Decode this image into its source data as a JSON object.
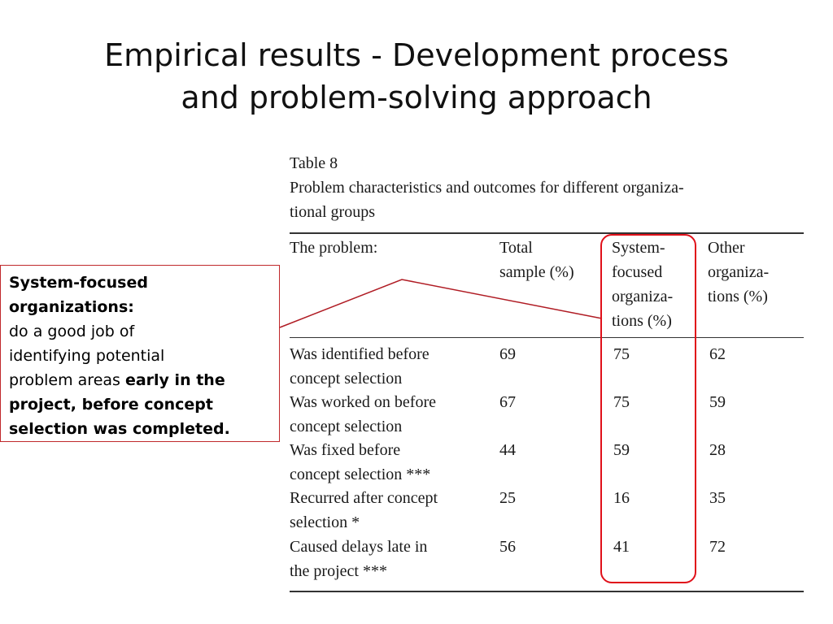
{
  "title": {
    "line1": "Empirical results - Development process",
    "line2": "and problem-solving approach"
  },
  "table": {
    "label": "Table 8",
    "caption_line1": "Problem characteristics and outcomes for different organiza-",
    "caption_line2": "tional groups",
    "columns": {
      "problem": "The problem:",
      "total": "Total sample (%)",
      "system": "System-focused organiza-tions (%)",
      "system_lines": [
        "System-",
        "focused",
        "organiza-",
        "tions (%)"
      ],
      "total_lines": [
        "Total",
        "sample (%)"
      ],
      "other_lines": [
        "Other",
        "organiza-",
        "tions (%)"
      ]
    },
    "rows": [
      {
        "lines": [
          "Was identified before",
          "concept selection"
        ],
        "total": "69",
        "system": "75",
        "other": "62"
      },
      {
        "lines": [
          "Was worked on before",
          "concept selection"
        ],
        "total": "67",
        "system": "75",
        "other": "59"
      },
      {
        "lines": [
          "Was fixed before",
          "concept selection ***"
        ],
        "total": "44",
        "system": "59",
        "other": "28"
      },
      {
        "lines": [
          "Recurred after concept",
          "selection *"
        ],
        "total": "25",
        "system": "16",
        "other": "35"
      },
      {
        "lines": [
          "Caused delays late in",
          "the project ***"
        ],
        "total": "56",
        "system": "41",
        "other": "72"
      }
    ]
  },
  "callout": {
    "heading_line1": "System-focused",
    "heading_line2": "organizations:",
    "body_line1": "do a good job of",
    "body_line2": "identifying potential",
    "body_line3_plain": "problem areas ",
    "body_line3_bold": "early in the",
    "body_line4_bold": "project, before concept",
    "body_line5_bold": "selection was completed."
  },
  "colors": {
    "highlight": "#e0101a",
    "callout_border": "#c0282b",
    "connector": "#b01c24"
  }
}
